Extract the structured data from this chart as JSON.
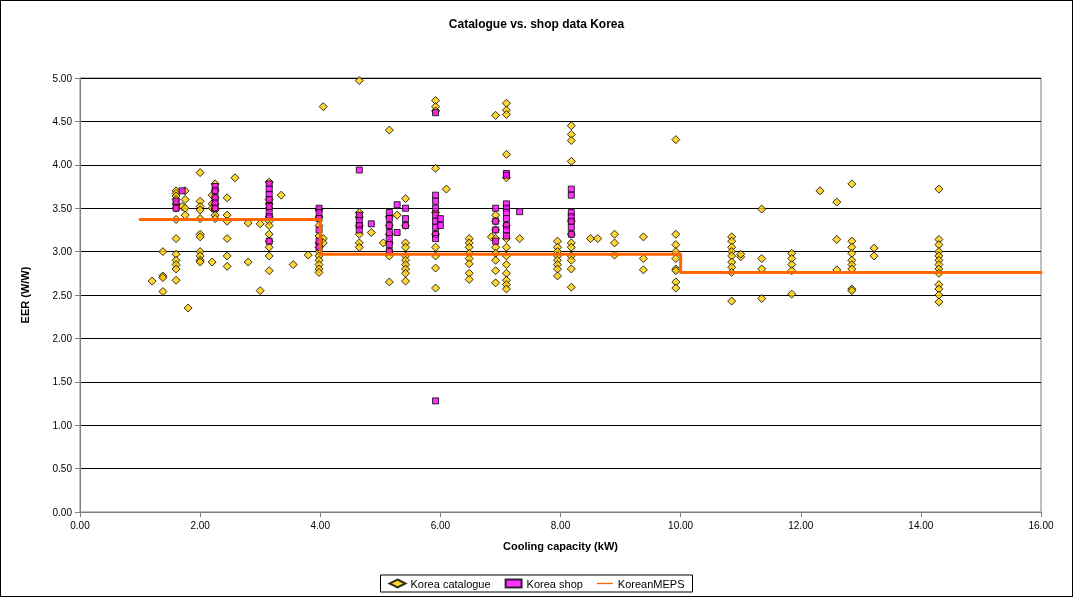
{
  "chart_data": {
    "type": "scatter",
    "title": "Catalogue vs. shop data Korea",
    "xlabel": "Cooling capacity (kW)",
    "ylabel": "EER (W/W)",
    "xlim": [
      0,
      16
    ],
    "ylim": [
      0,
      5
    ],
    "xticks": [
      {
        "value": 0,
        "label": "0.00"
      },
      {
        "value": 2,
        "label": "2.00"
      },
      {
        "value": 4,
        "label": "4.00"
      },
      {
        "value": 6,
        "label": "6.00"
      },
      {
        "value": 8,
        "label": "8.00"
      },
      {
        "value": 10,
        "label": "10.00"
      },
      {
        "value": 12,
        "label": "12.00"
      },
      {
        "value": 14,
        "label": "14.00"
      },
      {
        "value": 16,
        "label": "16.00"
      }
    ],
    "yticks": [
      {
        "value": 0,
        "label": "0.00"
      },
      {
        "value": 0.5,
        "label": "0.50"
      },
      {
        "value": 1,
        "label": "1.00"
      },
      {
        "value": 1.5,
        "label": "1.50"
      },
      {
        "value": 2,
        "label": "2.00"
      },
      {
        "value": 2.5,
        "label": "2.50"
      },
      {
        "value": 3,
        "label": "3.00"
      },
      {
        "value": 3.5,
        "label": "3.50"
      },
      {
        "value": 4,
        "label": "4.00"
      },
      {
        "value": 4.5,
        "label": "4.50"
      },
      {
        "value": 5,
        "label": "5.00"
      }
    ],
    "grid": "y",
    "legend": "bottom",
    "series": [
      {
        "name": "Korea catalogue",
        "type": "scatter",
        "marker": "diamond",
        "color": "#ffcc00",
        "x": [
          1.2,
          1.38,
          1.38,
          1.38,
          1.38,
          1.6,
          1.6,
          1.6,
          1.6,
          1.6,
          1.6,
          1.6,
          1.6,
          1.6,
          1.6,
          1.6,
          1.6,
          1.6,
          1.7,
          1.75,
          1.75,
          1.75,
          1.75,
          1.8,
          2.0,
          2.0,
          2.0,
          2.0,
          2.0,
          2.0,
          2.0,
          2.0,
          2.0,
          2.0,
          2.0,
          2.2,
          2.2,
          2.2,
          2.2,
          2.25,
          2.25,
          2.25,
          2.25,
          2.25,
          2.25,
          2.25,
          2.25,
          2.45,
          2.45,
          2.45,
          2.45,
          2.45,
          2.45,
          2.58,
          2.8,
          2.8,
          3.0,
          3.0,
          3.15,
          3.15,
          3.15,
          3.15,
          3.15,
          3.15,
          3.15,
          3.15,
          3.15,
          3.15,
          3.15,
          3.15,
          3.35,
          3.55,
          3.8,
          3.98,
          3.98,
          3.98,
          3.98,
          3.98,
          3.98,
          3.98,
          3.98,
          3.98,
          3.98,
          3.98,
          3.98,
          4.05,
          4.05,
          4.05,
          4.65,
          4.65,
          4.65,
          4.65,
          4.65,
          4.65,
          4.65,
          4.85,
          5.05,
          5.15,
          5.15,
          5.15,
          5.15,
          5.15,
          5.15,
          5.15,
          5.15,
          5.28,
          5.42,
          5.42,
          5.42,
          5.42,
          5.42,
          5.42,
          5.42,
          5.42,
          5.42,
          5.42,
          5.92,
          5.92,
          5.92,
          5.92,
          5.92,
          5.92,
          5.92,
          5.92,
          5.92,
          5.92,
          6.1,
          6.48,
          6.48,
          6.48,
          6.48,
          6.48,
          6.48,
          6.48,
          6.48,
          6.85,
          6.92,
          6.92,
          6.92,
          6.92,
          6.92,
          6.92,
          6.92,
          6.92,
          6.92,
          6.92,
          7.1,
          7.1,
          7.1,
          7.1,
          7.1,
          7.1,
          7.1,
          7.1,
          7.1,
          7.1,
          7.1,
          7.1,
          7.1,
          7.1,
          7.32,
          7.95,
          7.95,
          7.95,
          7.95,
          7.95,
          7.95,
          7.95,
          7.95,
          8.18,
          8.18,
          8.18,
          8.18,
          8.18,
          8.18,
          8.18,
          8.18,
          8.18,
          8.18,
          8.18,
          8.18,
          8.5,
          8.62,
          8.9,
          8.9,
          8.9,
          9.38,
          9.38,
          9.38,
          9.92,
          9.92,
          9.92,
          9.92,
          9.92,
          9.92,
          9.92,
          9.92,
          9.92,
          10.85,
          10.85,
          10.85,
          10.85,
          10.85,
          10.85,
          10.85,
          10.85,
          10.85,
          11.0,
          11.0,
          11.35,
          11.35,
          11.35,
          11.35,
          11.85,
          11.85,
          11.85,
          11.85,
          11.85,
          12.32,
          12.6,
          12.6,
          12.6,
          12.85,
          12.85,
          12.85,
          12.85,
          12.85,
          12.85,
          12.85,
          12.85,
          12.85,
          13.22,
          13.22,
          14.3,
          14.3,
          14.3,
          14.3,
          14.3,
          14.3,
          14.3,
          14.3,
          14.3,
          14.3,
          14.3,
          14.3,
          14.3
        ],
        "values": [
          2.66,
          2.72,
          2.7,
          2.54,
          3.0,
          3.7,
          3.67,
          3.64,
          3.6,
          3.55,
          3.5,
          3.37,
          3.15,
          2.97,
          2.9,
          2.85,
          2.8,
          2.67,
          3.52,
          3.6,
          3.5,
          3.42,
          3.7,
          2.35,
          3.91,
          3.58,
          3.52,
          3.48,
          3.38,
          3.2,
          3.17,
          3.0,
          2.95,
          2.9,
          2.88,
          3.55,
          3.5,
          2.88,
          3.65,
          3.78,
          3.7,
          3.62,
          3.55,
          3.48,
          3.42,
          3.38,
          3.5,
          3.62,
          3.42,
          3.35,
          3.15,
          2.95,
          2.83,
          3.85,
          3.33,
          2.88,
          2.55,
          3.32,
          3.8,
          3.6,
          3.55,
          3.5,
          3.4,
          3.35,
          3.3,
          3.2,
          3.12,
          3.05,
          2.95,
          2.78,
          3.65,
          2.85,
          2.96,
          3.48,
          3.4,
          3.3,
          3.18,
          3.1,
          3.05,
          3.0,
          2.95,
          2.9,
          2.85,
          2.8,
          2.76,
          4.67,
          3.15,
          3.1,
          4.97,
          3.45,
          3.4,
          3.3,
          3.2,
          3.1,
          3.05,
          3.22,
          3.1,
          4.4,
          3.4,
          3.3,
          3.2,
          3.1,
          3.0,
          2.95,
          2.65,
          3.42,
          3.61,
          3.3,
          3.1,
          3.05,
          2.95,
          2.9,
          2.85,
          2.8,
          2.75,
          2.66,
          4.74,
          4.67,
          4.62,
          3.96,
          3.45,
          3.2,
          3.05,
          2.95,
          2.81,
          2.58,
          3.72,
          3.15,
          3.1,
          3.05,
          2.98,
          2.92,
          2.86,
          2.75,
          2.68,
          3.17,
          4.57,
          3.42,
          3.35,
          3.25,
          3.15,
          3.05,
          2.98,
          2.9,
          2.78,
          2.64,
          4.71,
          4.63,
          4.58,
          4.12,
          3.85,
          3.3,
          3.15,
          3.05,
          2.95,
          2.85,
          2.75,
          2.67,
          2.62,
          2.57,
          3.15,
          3.12,
          3.05,
          3.0,
          2.95,
          2.9,
          2.85,
          2.8,
          2.72,
          4.45,
          4.35,
          4.28,
          4.04,
          3.35,
          3.2,
          3.1,
          3.05,
          2.95,
          2.9,
          2.8,
          2.59,
          3.15,
          3.15,
          3.2,
          3.1,
          2.96,
          3.17,
          2.92,
          2.79,
          4.29,
          3.2,
          3.08,
          3.0,
          2.92,
          2.8,
          2.78,
          2.65,
          2.58,
          3.17,
          3.12,
          3.05,
          3.0,
          2.95,
          2.88,
          2.82,
          2.76,
          2.43,
          2.94,
          2.97,
          3.49,
          2.92,
          2.8,
          2.46,
          2.98,
          2.92,
          2.85,
          2.78,
          2.51,
          3.7,
          3.57,
          3.14,
          2.79,
          3.78,
          3.12,
          3.05,
          2.98,
          2.9,
          2.85,
          2.8,
          2.57,
          2.55,
          3.04,
          2.95,
          3.72,
          3.14,
          3.08,
          3.0,
          2.95,
          2.9,
          2.85,
          2.8,
          2.75,
          2.62,
          2.57,
          2.5,
          2.42
        ]
      },
      {
        "name": "Korea shop",
        "type": "scatter",
        "marker": "square",
        "color": "#ff00ff",
        "x": [
          1.6,
          1.6,
          1.7,
          2.25,
          2.25,
          2.25,
          2.25,
          2.25,
          3.15,
          3.15,
          3.15,
          3.15,
          3.15,
          3.15,
          3.15,
          3.15,
          3.98,
          3.98,
          3.98,
          3.98,
          3.98,
          3.98,
          4.65,
          4.65,
          4.65,
          4.65,
          4.65,
          4.85,
          5.15,
          5.15,
          5.15,
          5.15,
          5.15,
          5.15,
          5.15,
          5.28,
          5.28,
          5.42,
          5.42,
          5.42,
          5.92,
          5.92,
          5.92,
          5.92,
          5.92,
          5.92,
          5.92,
          5.92,
          5.92,
          5.92,
          6.0,
          6.0,
          6.92,
          6.92,
          6.92,
          6.92,
          7.1,
          7.1,
          7.1,
          7.1,
          7.1,
          7.1,
          7.1,
          7.1,
          7.1,
          7.32,
          8.18,
          8.18,
          8.18,
          8.18,
          8.18,
          8.18,
          8.18
        ],
        "values": [
          3.58,
          3.5,
          3.7,
          3.75,
          3.7,
          3.62,
          3.56,
          3.5,
          3.78,
          3.72,
          3.66,
          3.6,
          3.52,
          3.45,
          3.4,
          3.12,
          3.5,
          3.45,
          3.38,
          3.25,
          3.12,
          3.05,
          3.94,
          3.42,
          3.36,
          3.3,
          3.25,
          3.32,
          3.45,
          3.38,
          3.3,
          3.22,
          3.15,
          3.08,
          3.0,
          3.54,
          3.22,
          3.5,
          3.38,
          3.3,
          4.6,
          3.65,
          3.58,
          3.5,
          3.42,
          3.35,
          3.28,
          3.2,
          3.15,
          1.28,
          3.38,
          3.3,
          3.5,
          3.35,
          3.25,
          3.12,
          3.9,
          3.88,
          3.55,
          3.5,
          3.45,
          3.38,
          3.3,
          3.25,
          3.18,
          3.46,
          3.72,
          3.65,
          3.45,
          3.4,
          3.35,
          3.28,
          3.2
        ]
      },
      {
        "name": "KoreanMEPS",
        "type": "line",
        "marker": "none",
        "line_style": "solid",
        "color": "#ff6600",
        "x": [
          1,
          4,
          4,
          10,
          10,
          16
        ],
        "values": [
          3.37,
          3.37,
          2.97,
          2.97,
          2.76,
          2.76
        ]
      }
    ]
  }
}
